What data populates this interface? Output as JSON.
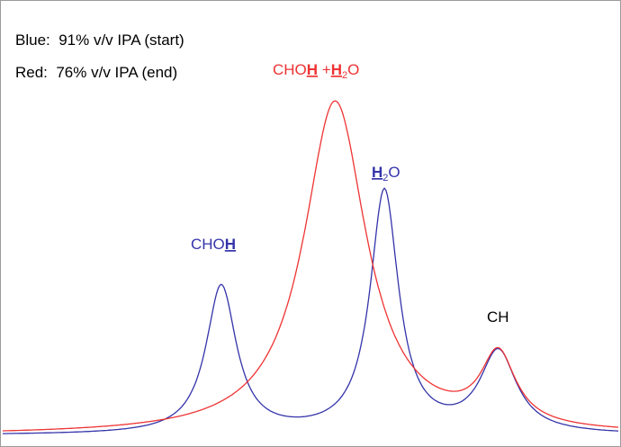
{
  "legend": {
    "blue": "Blue:  91% v/v IPA (start)",
    "red": "Red:  76% v/v IPA (end)"
  },
  "annotations": {
    "red_peak": {
      "t1": "CHO",
      "t2": "H",
      "t3": " +",
      "t4": "H",
      "t5": "2",
      "t6": "O"
    },
    "h2o": {
      "t1": "H",
      "t2": "2",
      "t3": "O"
    },
    "choh_blue": {
      "t1": "CHO",
      "t2": "H"
    },
    "ch": "CH"
  },
  "colors": {
    "blue": "#3333aa",
    "red": "#ee3333",
    "text": "#000000"
  },
  "chart_data": {
    "type": "line",
    "title": "",
    "xlabel": "",
    "ylabel": "",
    "grid": false,
    "xlim": [
      0,
      100
    ],
    "ylim": [
      0,
      100
    ],
    "series": [
      {
        "color": "blue",
        "peaks": [
          {
            "label": "CHOH",
            "center": 35.5,
            "height": 43.0,
            "width": 3.0
          },
          {
            "label": "H2O",
            "center": 62.0,
            "height": 70.5,
            "width": 2.8
          },
          {
            "label": "CH",
            "center": 80.5,
            "height": 23.5,
            "width": 3.6
          }
        ]
      },
      {
        "color": "red",
        "peaks": [
          {
            "label": "CHOH + H2O",
            "center": 54.0,
            "height": 97.0,
            "width": 6.2
          },
          {
            "label": "CH",
            "center": 80.5,
            "height": 20.5,
            "width": 3.4
          }
        ]
      }
    ]
  }
}
